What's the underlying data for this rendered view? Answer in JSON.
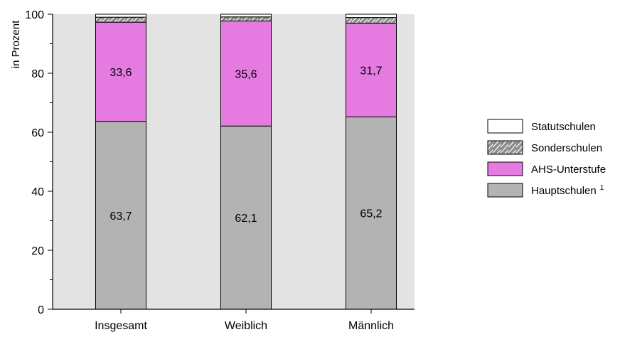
{
  "chart_data": {
    "type": "bar",
    "stacked": true,
    "categories": [
      "Insgesamt",
      "Weiblich",
      "Männlich"
    ],
    "ylabel": "in Prozent",
    "ylim": [
      0,
      100
    ],
    "yticks": [
      0,
      20,
      40,
      60,
      80,
      100
    ],
    "grid": false,
    "legend_position": "right",
    "plot_background": "#e3e3e3",
    "series": [
      {
        "name": "Hauptschulen",
        "name_suffix": "1",
        "values": [
          63.7,
          62.1,
          65.2
        ],
        "labels": [
          "63,7",
          "62,1",
          "65,2"
        ],
        "color": "#b3b3b3",
        "pattern": "solid"
      },
      {
        "name": "AHS-Unterstufe",
        "values": [
          33.6,
          35.6,
          31.7
        ],
        "labels": [
          "33,6",
          "35,6",
          "31,7"
        ],
        "color": "#e57be0",
        "pattern": "solid"
      },
      {
        "name": "Sonderschulen",
        "values": [
          1.7,
          1.4,
          2.0
        ],
        "color": "#8c8c8c",
        "pattern": "hatch"
      },
      {
        "name": "Statutschulen",
        "values": [
          1.0,
          0.9,
          1.1
        ],
        "color": "#ffffff",
        "pattern": "solid"
      }
    ],
    "legend_order": [
      "Statutschulen",
      "Sonderschulen",
      "AHS-Unterstufe",
      "Hauptschulen"
    ]
  }
}
